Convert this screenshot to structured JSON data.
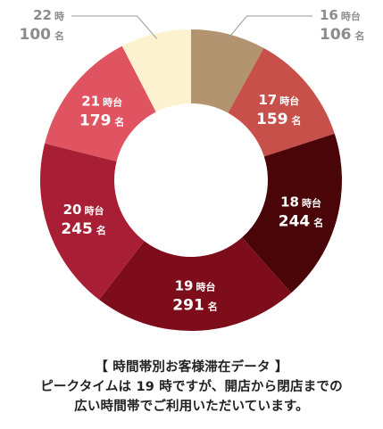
{
  "chart_data": {
    "type": "pie",
    "donut": true,
    "unit": "名",
    "slices": [
      {
        "label": "16時台",
        "value": 106,
        "color": "#b39470",
        "label_color": "#8c8c8c"
      },
      {
        "label": "17時台",
        "value": 159,
        "color": "#c8504a",
        "label_color": "#ffffff"
      },
      {
        "label": "18時台",
        "value": 244,
        "color": "#4a0508",
        "label_color": "#ffffff"
      },
      {
        "label": "19時台",
        "value": 291,
        "color": "#7e0d1b",
        "label_color": "#ffffff"
      },
      {
        "label": "20時台",
        "value": 245,
        "color": "#a81e34",
        "label_color": "#ffffff"
      },
      {
        "label": "21時台",
        "value": 179,
        "color": "#e05462",
        "label_color": "#ffffff"
      },
      {
        "label": "22時",
        "value": 100,
        "color": "#fdf2cf",
        "label_color": "#8c8c8c"
      }
    ]
  },
  "caption": {
    "line1": "【 時間帯別お客様滞在データ 】",
    "line2": "ピークタイムは 19 時ですが、開店から閉店までの",
    "line3": "広い時間帯でご利用いただいています。"
  }
}
